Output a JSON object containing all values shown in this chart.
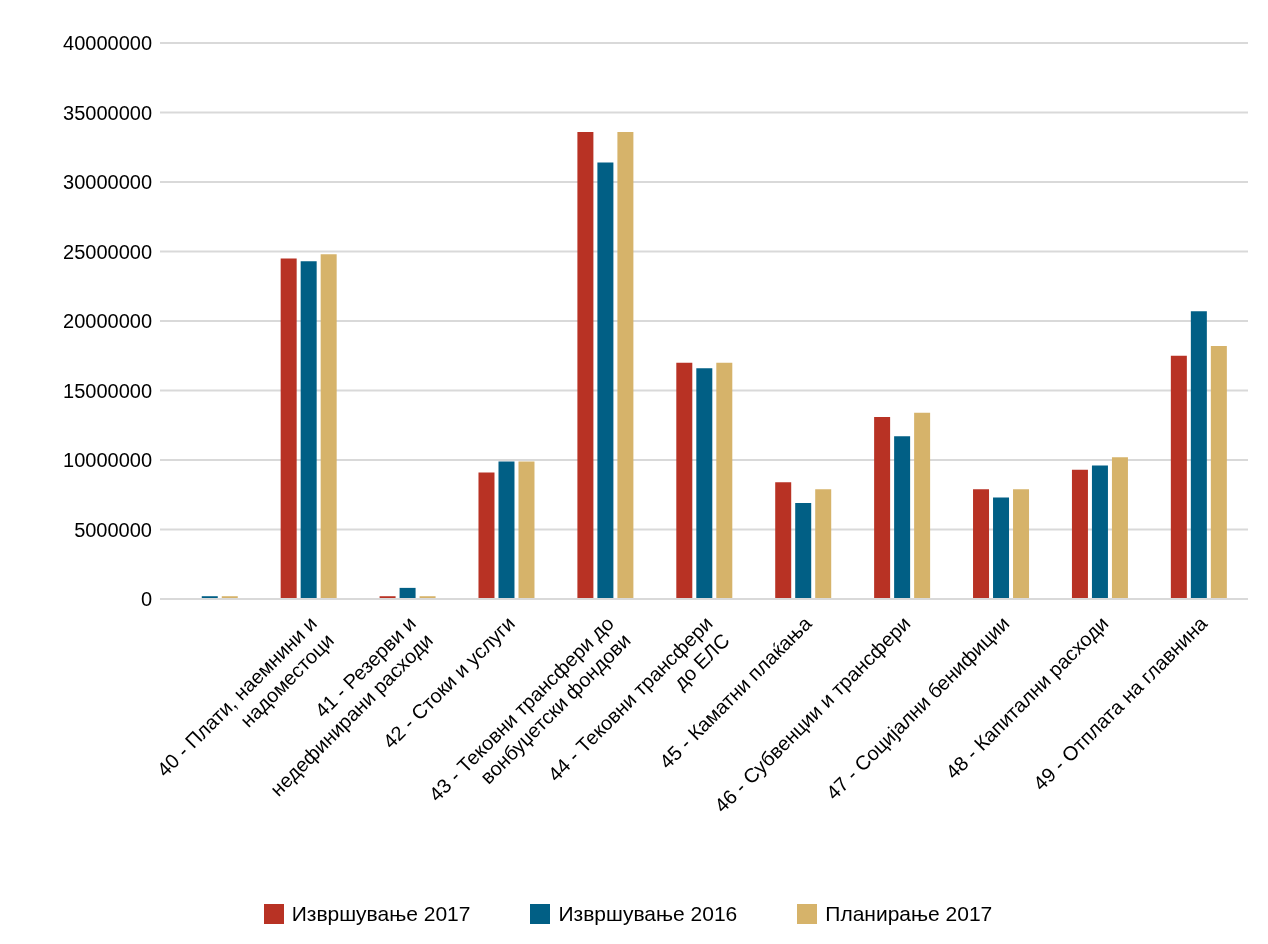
{
  "chart_data": {
    "type": "bar",
    "categories": [
      null,
      "40 - Плати, наемнини и\nнадоместоци",
      "41 - Резерви и\nнедефинирани расходи",
      "42 - Стоки и услуги",
      "43 - Тековни трансфери до\nвонбуџетски фондови",
      "44 - Тековни трансфери\nдо ЕЛС",
      "45 - Каматни плаќања",
      "46 - Субвенции и трансфери",
      "47 - Социјални бенифиции",
      "48 - Капитални расходи",
      "49 - Отплата на главнина"
    ],
    "series": [
      {
        "name": "Извршување 2017",
        "color": "#b83224",
        "values": [
          null,
          24500000,
          200000,
          9100000,
          33600000,
          17000000,
          8400000,
          13100000,
          7900000,
          9300000,
          17500000
        ]
      },
      {
        "name": "Извршување 2016",
        "color": "#015f85",
        "values": [
          200000,
          24300000,
          800000,
          9900000,
          31400000,
          16600000,
          6900000,
          11700000,
          7300000,
          9600000,
          20700000
        ]
      },
      {
        "name": "Планирање 2017",
        "color": "#d6b36a",
        "values": [
          200000,
          24800000,
          200000,
          9900000,
          33600000,
          17000000,
          7900000,
          13400000,
          7900000,
          10200000,
          18200000
        ]
      }
    ],
    "ylim": [
      0,
      40000000
    ],
    "yticks": [
      0,
      5000000,
      10000000,
      15000000,
      20000000,
      25000000,
      30000000,
      35000000,
      40000000
    ],
    "grid": "y",
    "legend": "bottom"
  }
}
